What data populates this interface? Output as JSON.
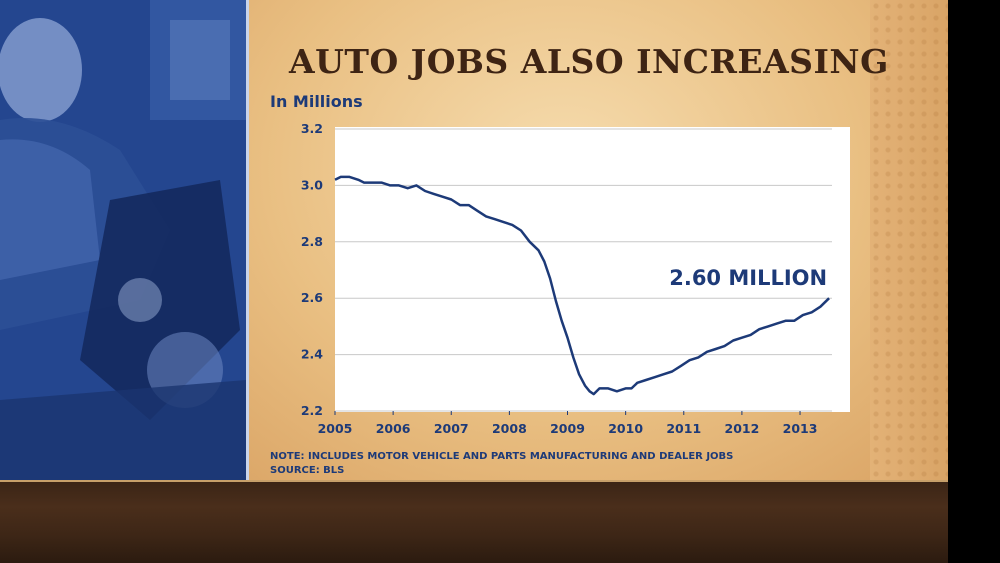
{
  "slide": {
    "title": "AUTO JOBS ALSO INCREASING",
    "units_label": "In Millions",
    "note": "NOTE: INCLUDES MOTOR VEHICLE AND PARTS MANUFACTURING AND DEALER JOBS",
    "source": "SOURCE: BLS"
  },
  "colors": {
    "line": "#1d3a78",
    "title": "#3e2414",
    "plot_bg": "#ffffff",
    "grid": "#c8c8c8"
  },
  "chart_data": {
    "type": "line",
    "title": "AUTO JOBS ALSO INCREASING",
    "ylabel": "In Millions",
    "xlim": [
      2005,
      2013.55
    ],
    "ylim": [
      2.2,
      3.2
    ],
    "grid": true,
    "x_ticks": [
      "2005",
      "2006",
      "2007",
      "2008",
      "2009",
      "2010",
      "2011",
      "2012",
      "2013"
    ],
    "y_ticks": [
      "2.2",
      "2.4",
      "2.6",
      "2.8",
      "3.0",
      "3.2"
    ],
    "annotation": {
      "text": "2.60 MILLION",
      "x": 2013.5,
      "y": 2.6
    },
    "series": [
      {
        "name": "",
        "x": [
          2005.0,
          2005.1,
          2005.25,
          2005.4,
          2005.5,
          2005.65,
          2005.8,
          2005.95,
          2006.1,
          2006.25,
          2006.4,
          2006.55,
          2006.7,
          2006.85,
          2007.0,
          2007.15,
          2007.3,
          2007.45,
          2007.6,
          2007.75,
          2007.9,
          2008.05,
          2008.2,
          2008.35,
          2008.5,
          2008.6,
          2008.7,
          2008.8,
          2008.9,
          2009.0,
          2009.1,
          2009.2,
          2009.3,
          2009.38,
          2009.45,
          2009.55,
          2009.7,
          2009.85,
          2010.0,
          2010.1,
          2010.2,
          2010.35,
          2010.5,
          2010.65,
          2010.8,
          2010.95,
          2011.1,
          2011.25,
          2011.4,
          2011.55,
          2011.7,
          2011.85,
          2012.0,
          2012.15,
          2012.3,
          2012.45,
          2012.6,
          2012.75,
          2012.9,
          2013.05,
          2013.2,
          2013.35,
          2013.5
        ],
        "y": [
          3.02,
          3.03,
          3.03,
          3.02,
          3.01,
          3.01,
          3.01,
          3.0,
          3.0,
          2.99,
          3.0,
          2.98,
          2.97,
          2.96,
          2.95,
          2.93,
          2.93,
          2.91,
          2.89,
          2.88,
          2.87,
          2.86,
          2.84,
          2.8,
          2.77,
          2.73,
          2.67,
          2.59,
          2.52,
          2.46,
          2.39,
          2.33,
          2.29,
          2.27,
          2.26,
          2.28,
          2.28,
          2.27,
          2.28,
          2.28,
          2.3,
          2.31,
          2.32,
          2.33,
          2.34,
          2.36,
          2.38,
          2.39,
          2.41,
          2.42,
          2.43,
          2.45,
          2.46,
          2.47,
          2.49,
          2.5,
          2.51,
          2.52,
          2.52,
          2.54,
          2.55,
          2.57,
          2.6
        ]
      }
    ]
  }
}
